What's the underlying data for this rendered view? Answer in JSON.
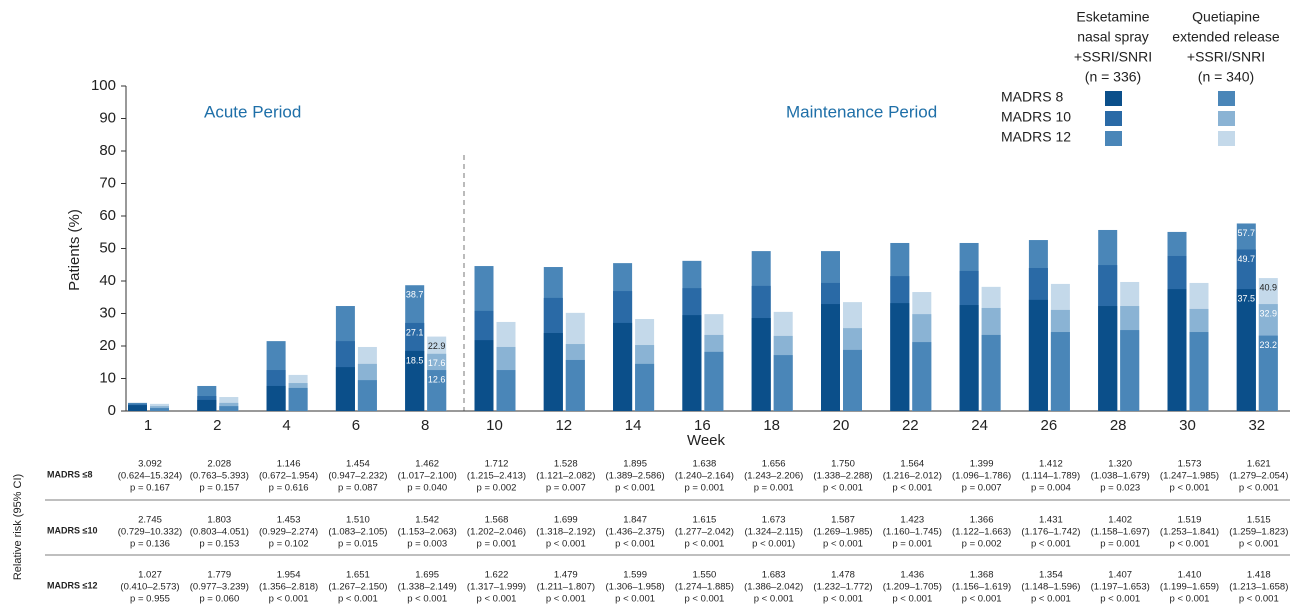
{
  "chart_data": {
    "type": "overlapping-bar",
    "y_label": "Patients (%)",
    "x_label": "Week",
    "annotations": [
      "Acute Period",
      "Maintenance Period"
    ],
    "categories": [
      "1",
      "2",
      "4",
      "6",
      "8",
      "10",
      "12",
      "14",
      "16",
      "18",
      "20",
      "22",
      "24",
      "26",
      "28",
      "30",
      "32"
    ],
    "ylim": [
      0,
      100
    ],
    "yticks": [
      0,
      10,
      20,
      30,
      40,
      50,
      60,
      70,
      80,
      90,
      100
    ],
    "series_labels": [
      "MADRS 8",
      "MADRS 10",
      "MADRS 12"
    ],
    "groups": [
      {
        "header": [
          "Esketamine",
          "nasal spray",
          "+SSRI/SNRI",
          "(n = 336)"
        ],
        "series": [
          {
            "color": "#0b4f8a",
            "values": [
              1.8,
              3.4,
              7.7,
              13.5,
              18.5,
              21.8,
              24.0,
              27.1,
              29.5,
              28.6,
              32.9,
              33.2,
              32.6,
              34.2,
              32.3,
              37.5,
              37.5
            ],
            "value_labels": [
              null,
              null,
              null,
              null,
              "18.5",
              null,
              null,
              null,
              null,
              null,
              null,
              null,
              null,
              null,
              null,
              null,
              "37.5"
            ]
          },
          {
            "color": "#2a6aa6",
            "values": [
              2.0,
              4.6,
              12.6,
              21.5,
              27.1,
              30.8,
              34.8,
              36.9,
              37.8,
              38.5,
              39.4,
              41.5,
              43.1,
              44.0,
              44.9,
              47.7,
              49.7
            ],
            "value_labels": [
              null,
              null,
              null,
              null,
              "27.1",
              null,
              null,
              null,
              null,
              null,
              null,
              null,
              null,
              null,
              null,
              null,
              "49.7"
            ]
          },
          {
            "color": "#4a86b8",
            "values": [
              2.5,
              7.7,
              21.5,
              32.3,
              38.7,
              44.6,
              44.3,
              45.5,
              46.2,
              49.2,
              49.2,
              51.7,
              51.7,
              52.6,
              55.7,
              55.1,
              57.7
            ],
            "value_labels": [
              null,
              null,
              null,
              null,
              "38.7",
              null,
              null,
              null,
              null,
              null,
              null,
              null,
              null,
              null,
              null,
              null,
              "57.7"
            ]
          }
        ]
      },
      {
        "header": [
          "Quetiapine",
          "extended release",
          "+SSRI/SNRI",
          "(n = 340)"
        ],
        "series": [
          {
            "color": "#4a86b8",
            "values": [
              0.9,
              1.5,
              7.1,
              9.5,
              12.6,
              12.6,
              15.7,
              14.5,
              18.2,
              17.2,
              18.8,
              21.2,
              23.4,
              24.3,
              24.9,
              24.3,
              23.2
            ],
            "value_labels": [
              null,
              null,
              null,
              null,
              "12.6",
              null,
              null,
              null,
              null,
              null,
              null,
              null,
              null,
              null,
              null,
              null,
              "23.2"
            ]
          },
          {
            "color": "#8ab3d4",
            "values": [
              1.5,
              2.5,
              8.6,
              14.5,
              17.6,
              19.7,
              20.6,
              20.3,
              23.4,
              23.1,
              25.5,
              29.8,
              31.7,
              31.1,
              32.3,
              31.4,
              32.9
            ],
            "value_labels": [
              null,
              null,
              null,
              null,
              "17.6",
              null,
              null,
              null,
              null,
              null,
              null,
              null,
              null,
              null,
              null,
              null,
              "32.9"
            ]
          },
          {
            "color": "#c4d9ea",
            "values": [
              2.2,
              4.3,
              11.1,
              19.7,
              22.9,
              27.4,
              30.2,
              28.3,
              29.8,
              30.5,
              33.5,
              36.6,
              38.2,
              39.1,
              39.7,
              39.4,
              40.9
            ],
            "value_labels": [
              null,
              null,
              null,
              null,
              "22.9",
              null,
              null,
              null,
              null,
              null,
              null,
              null,
              null,
              null,
              null,
              null,
              "40.9"
            ]
          }
        ]
      }
    ]
  },
  "table": {
    "title": "Relative risk (95% CI)",
    "rows": [
      {
        "label": "MADRS ≤8",
        "cells": [
          [
            "3.092",
            "(0.624–15.324)",
            "p = 0.167"
          ],
          [
            "2.028",
            "(0.763–5.393)",
            "p = 0.157"
          ],
          [
            "1.146",
            "(0.672–1.954)",
            "p = 0.616"
          ],
          [
            "1.454",
            "(0.947–2.232)",
            "p = 0.087"
          ],
          [
            "1.462",
            "(1.017–2.100)",
            "p = 0.040"
          ],
          [
            "1.712",
            "(1.215–2.413)",
            "p = 0.002"
          ],
          [
            "1.528",
            "(1.121–2.082)",
            "p = 0.007"
          ],
          [
            "1.895",
            "(1.389–2.586)",
            "p < 0.001"
          ],
          [
            "1.638",
            "(1.240–2.164)",
            "p = 0.001"
          ],
          [
            "1.656",
            "(1.243–2.206)",
            "p = 0.001"
          ],
          [
            "1.750",
            "(1.338–2.288)",
            "p < 0.001"
          ],
          [
            "1.564",
            "(1.216–2.012)",
            "p < 0.001"
          ],
          [
            "1.399",
            "(1.096–1.786)",
            "p = 0.007"
          ],
          [
            "1.412",
            "(1.114–1.789)",
            "p = 0.004"
          ],
          [
            "1.320",
            "(1.038–1.679)",
            "p = 0.023"
          ],
          [
            "1.573",
            "(1.247–1.985)",
            "p < 0.001"
          ],
          [
            "1.621",
            "(1.279–2.054)",
            "p < 0.001"
          ]
        ]
      },
      {
        "label": "MADRS ≤10",
        "cells": [
          [
            "2.745",
            "(0.729–10.332)",
            "p = 0.136"
          ],
          [
            "1.803",
            "(0.803–4.051)",
            "p = 0.153"
          ],
          [
            "1.453",
            "(0.929–2.274)",
            "p = 0.102"
          ],
          [
            "1.510",
            "(1.083–2.105)",
            "p = 0.015"
          ],
          [
            "1.542",
            "(1.153–2.063)",
            "p = 0.003"
          ],
          [
            "1.568",
            "(1.202–2.046)",
            "p = 0.001"
          ],
          [
            "1.699",
            "(1.318–2.192)",
            "p < 0.001"
          ],
          [
            "1.847",
            "(1.436–2.375)",
            "p < 0.001"
          ],
          [
            "1.615",
            "(1.277–2.042)",
            "p < 0.001"
          ],
          [
            "1.673",
            "(1.324–2.115)",
            "p < 0.001)"
          ],
          [
            "1.587",
            "(1.269–1.985)",
            "p < 0.001"
          ],
          [
            "1.423",
            "(1.160–1.745)",
            "p = 0.001"
          ],
          [
            "1.366",
            "(1.122–1.663)",
            "p = 0.002"
          ],
          [
            "1.431",
            "(1.176–1.742)",
            "p < 0.001"
          ],
          [
            "1.402",
            "(1.158–1.697)",
            "p = 0.001"
          ],
          [
            "1.519",
            "(1.253–1.841)",
            "p < 0.001"
          ],
          [
            "1.515",
            "(1.259–1.823)",
            "p < 0.001"
          ]
        ]
      },
      {
        "label": "MADRS ≤12",
        "cells": [
          [
            "1.027",
            "(0.410–2.573)",
            "p = 0.955"
          ],
          [
            "1.779",
            "(0.977–3.239)",
            "p = 0.060"
          ],
          [
            "1.954",
            "(1.356–2.818)",
            "p < 0.001"
          ],
          [
            "1.651",
            "(1.267–2.150)",
            "p < 0.001"
          ],
          [
            "1.695",
            "(1.338–2.149)",
            "p < 0.001"
          ],
          [
            "1.622",
            "(1.317–1.999)",
            "p < 0.001"
          ],
          [
            "1.479",
            "(1.211–1.807)",
            "p < 0.001"
          ],
          [
            "1.599",
            "(1.306–1.958)",
            "p < 0.001"
          ],
          [
            "1.550",
            "(1.274–1.885)",
            "p < 0.001"
          ],
          [
            "1.683",
            "(1.386–2.042)",
            "p < 0.001"
          ],
          [
            "1.478",
            "(1.232–1.772)",
            "p < 0.001"
          ],
          [
            "1.436",
            "(1.209–1.705)",
            "p < 0.001"
          ],
          [
            "1.368",
            "(1.156–1.619)",
            "p < 0.001"
          ],
          [
            "1.354",
            "(1.148–1.596)",
            "p < 0.001"
          ],
          [
            "1.407",
            "(1.197–1.653)",
            "p < 0.001"
          ],
          [
            "1.410",
            "(1.199–1.659)",
            "p < 0.001"
          ],
          [
            "1.418",
            "(1.213–1.658)",
            "p < 0.001"
          ]
        ]
      }
    ]
  }
}
